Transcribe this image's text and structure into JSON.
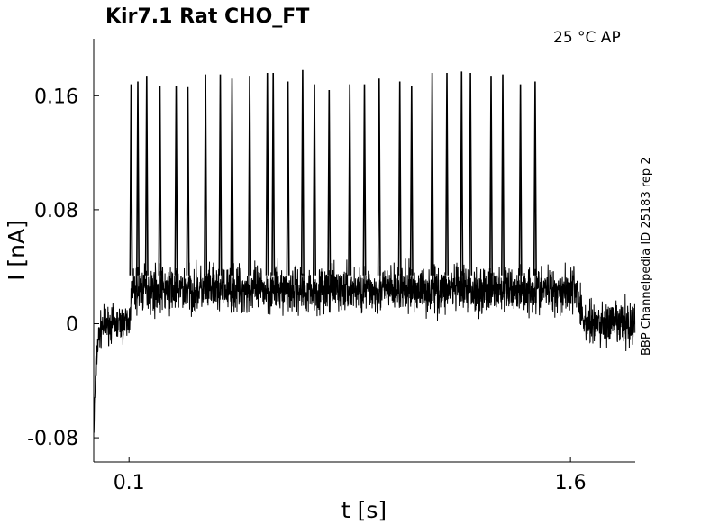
{
  "chart_data": {
    "type": "line",
    "title": "Kir7.1  Rat  CHO_FT",
    "annotation": "25 °C  AP",
    "side_label": "BBP Channelpedia ID 25183 rep 2",
    "xlabel": "t [s]",
    "ylabel": "I [nA]",
    "xlim": [
      -0.02,
      1.82
    ],
    "ylim": [
      -0.097,
      0.2
    ],
    "x_ticks": [
      0.1,
      1.6
    ],
    "x_tick_labels": [
      "0.1",
      "1.6"
    ],
    "y_ticks": [
      0.16,
      0.08,
      0,
      -0.08
    ],
    "y_tick_labels": [
      "0.16",
      "0.08",
      "0",
      "-0.08"
    ],
    "grid": false,
    "legend": "none",
    "line_color": "#000000",
    "series": [
      {
        "baseline_before_stimulus": 0.0,
        "baseline_during_stimulus": 0.024,
        "baseline_after_stimulus": 0.0,
        "stimulus_on": 0.1,
        "stimulus_off": 1.625,
        "initial_transient_min": -0.073,
        "spike_times": [
          0.107,
          0.13,
          0.16,
          0.205,
          0.26,
          0.3,
          0.36,
          0.41,
          0.45,
          0.51,
          0.57,
          0.59,
          0.64,
          0.69,
          0.73,
          0.78,
          0.85,
          0.9,
          0.95,
          1.02,
          1.06,
          1.13,
          1.18,
          1.23,
          1.26,
          1.33,
          1.37,
          1.43,
          1.48
        ],
        "spike_peaks": [
          0.168,
          0.17,
          0.174,
          0.167,
          0.167,
          0.166,
          0.175,
          0.175,
          0.172,
          0.174,
          0.176,
          0.176,
          0.17,
          0.178,
          0.168,
          0.164,
          0.168,
          0.168,
          0.172,
          0.17,
          0.167,
          0.176,
          0.176,
          0.177,
          0.176,
          0.174,
          0.175,
          0.168,
          0.17
        ]
      }
    ]
  }
}
